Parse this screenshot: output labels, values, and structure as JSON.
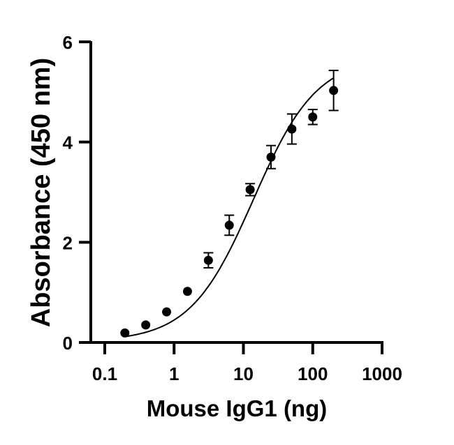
{
  "chart_data": {
    "type": "scatter",
    "title": "",
    "xlabel": "Mouse IgG1 (ng)",
    "ylabel": "Absorbance (450 nm)",
    "xscale": "log",
    "xlim": [
      0.06,
      1000
    ],
    "ylim": [
      0,
      6
    ],
    "x_ticks": [
      0.1,
      1,
      10,
      100,
      1000
    ],
    "x_tick_labels": [
      "0.1",
      "1",
      "10",
      "100",
      "1000"
    ],
    "y_ticks": [
      0,
      2,
      4,
      6
    ],
    "y_tick_labels": [
      "0",
      "2",
      "4",
      "6"
    ],
    "grid": false,
    "legend": null,
    "fit": "four-parameter logistic curve through points",
    "series": [
      {
        "name": "Mouse IgG1",
        "color": "#000000",
        "marker": "filled-circle",
        "x": [
          0.195,
          0.39,
          0.78,
          1.56,
          3.125,
          6.25,
          12.5,
          25,
          50,
          100,
          200
        ],
        "y": [
          0.19,
          0.35,
          0.61,
          1.02,
          1.64,
          2.34,
          3.05,
          3.7,
          4.26,
          4.5,
          5.03
        ],
        "error": [
          0.0,
          0.0,
          0.0,
          0.0,
          0.15,
          0.2,
          0.12,
          0.23,
          0.3,
          0.15,
          0.4
        ]
      }
    ]
  }
}
